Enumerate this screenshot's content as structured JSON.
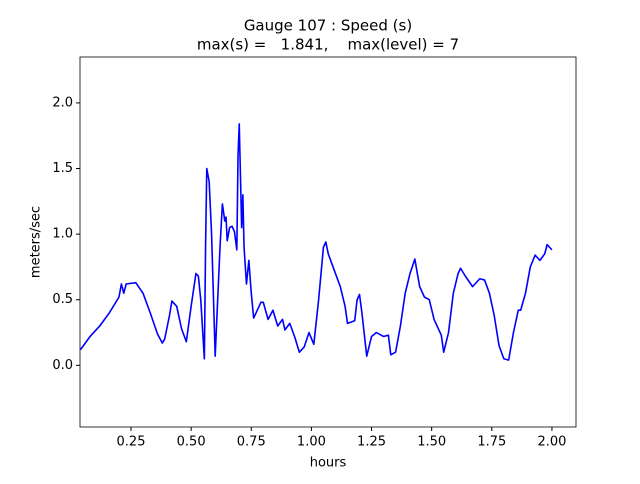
{
  "chart_data": {
    "type": "line",
    "title": "Gauge 107 : Speed (s)",
    "subtitle": "max(s) =   1.841,    max(level) = 7",
    "x_label": "hours",
    "y_label": "meters/sec",
    "xlim": [
      0.038,
      2.1
    ],
    "ylim": [
      -0.47,
      2.35
    ],
    "xticks": [
      0.25,
      {
        "value": 0.5,
        "label": "0.50"
      },
      0.75,
      {
        "value": 1.0,
        "label": "1.00"
      },
      1.25,
      {
        "value": 1.5,
        "label": "1.50"
      },
      1.75,
      {
        "value": 2.0,
        "label": "2.00"
      }
    ],
    "yticks": [
      {
        "value": 0.0,
        "label": "0.0"
      },
      0.5,
      {
        "value": 1.0,
        "label": "1.0"
      },
      1.5,
      {
        "value": 2.0,
        "label": "2.0"
      }
    ],
    "x": [
      0.04,
      0.08,
      0.12,
      0.16,
      0.2,
      0.21,
      0.22,
      0.23,
      0.27,
      0.3,
      0.33,
      0.36,
      0.38,
      0.39,
      0.41,
      0.42,
      0.44,
      0.46,
      0.48,
      0.5,
      0.52,
      0.53,
      0.54,
      0.555,
      0.56,
      0.565,
      0.575,
      0.585,
      0.6,
      0.62,
      0.63,
      0.64,
      0.645,
      0.65,
      0.66,
      0.67,
      0.68,
      0.69,
      0.695,
      0.7,
      0.705,
      0.71,
      0.715,
      0.72,
      0.73,
      0.74,
      0.75,
      0.76,
      0.77,
      0.79,
      0.8,
      0.82,
      0.84,
      0.86,
      0.88,
      0.89,
      0.91,
      0.93,
      0.95,
      0.97,
      0.99,
      1.01,
      1.03,
      1.05,
      1.06,
      1.07,
      1.09,
      1.12,
      1.14,
      1.15,
      1.18,
      1.19,
      1.2,
      1.21,
      1.23,
      1.25,
      1.27,
      1.3,
      1.32,
      1.33,
      1.35,
      1.37,
      1.39,
      1.41,
      1.43,
      1.45,
      1.47,
      1.49,
      1.51,
      1.54,
      1.55,
      1.57,
      1.59,
      1.61,
      1.62,
      1.64,
      1.67,
      1.7,
      1.72,
      1.74,
      1.76,
      1.78,
      1.8,
      1.82,
      1.84,
      1.86,
      1.87,
      1.89,
      1.91,
      1.93,
      1.95,
      1.97,
      1.98,
      2.0
    ],
    "series": [
      {
        "color": "#0000ff",
        "values": [
          0.12,
          0.22,
          0.3,
          0.4,
          0.52,
          0.62,
          0.55,
          0.62,
          0.63,
          0.55,
          0.4,
          0.24,
          0.17,
          0.2,
          0.38,
          0.49,
          0.45,
          0.28,
          0.18,
          0.45,
          0.7,
          0.68,
          0.5,
          0.05,
          0.9,
          1.5,
          1.4,
          1.0,
          0.07,
          0.9,
          1.23,
          1.1,
          1.13,
          0.95,
          1.05,
          1.06,
          1.02,
          0.88,
          1.6,
          1.84,
          1.45,
          1.05,
          1.3,
          0.9,
          0.62,
          0.8,
          0.55,
          0.36,
          0.4,
          0.48,
          0.48,
          0.35,
          0.42,
          0.3,
          0.35,
          0.27,
          0.32,
          0.22,
          0.1,
          0.14,
          0.25,
          0.16,
          0.5,
          0.9,
          0.94,
          0.85,
          0.75,
          0.6,
          0.45,
          0.32,
          0.34,
          0.5,
          0.54,
          0.4,
          0.07,
          0.22,
          0.25,
          0.22,
          0.23,
          0.08,
          0.1,
          0.3,
          0.55,
          0.7,
          0.81,
          0.6,
          0.52,
          0.5,
          0.35,
          0.23,
          0.1,
          0.25,
          0.55,
          0.7,
          0.74,
          0.68,
          0.6,
          0.66,
          0.65,
          0.55,
          0.38,
          0.15,
          0.05,
          0.04,
          0.25,
          0.42,
          0.42,
          0.55,
          0.75,
          0.84,
          0.8,
          0.85,
          0.92,
          0.88
        ]
      }
    ]
  }
}
